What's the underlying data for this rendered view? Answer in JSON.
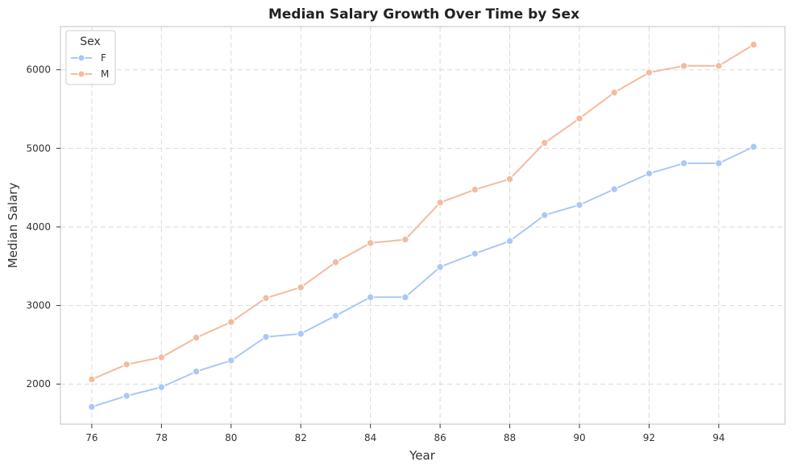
{
  "chart_data": {
    "type": "line",
    "title": "Median Salary Growth Over Time by Sex",
    "xlabel": "Year",
    "ylabel": "Median Salary",
    "xlim": [
      75.1,
      95.9
    ],
    "ylim": [
      1490,
      6550
    ],
    "x_ticks": [
      76,
      78,
      80,
      82,
      84,
      86,
      88,
      90,
      92,
      94
    ],
    "y_ticks": [
      2000,
      3000,
      4000,
      5000,
      6000
    ],
    "grid": true,
    "legend": {
      "title": "Sex",
      "placement": "top-left"
    },
    "x": [
      76,
      77,
      78,
      79,
      80,
      81,
      82,
      83,
      84,
      85,
      86,
      87,
      88,
      89,
      90,
      91,
      92,
      93,
      94,
      95
    ],
    "series": [
      {
        "name": "F",
        "color": "#abc8f5",
        "values": [
          1710,
          1850,
          1960,
          2160,
          2300,
          2600,
          2640,
          2870,
          3105,
          3105,
          3490,
          3660,
          3820,
          4150,
          4280,
          4480,
          4680,
          4810,
          4810,
          5020
        ]
      },
      {
        "name": "M",
        "color": "#f3bb9f",
        "values": [
          2060,
          2250,
          2340,
          2590,
          2790,
          3095,
          3230,
          3550,
          3795,
          3840,
          4310,
          4475,
          4610,
          5070,
          5380,
          5710,
          5965,
          6050,
          6050,
          6320
        ]
      }
    ]
  }
}
